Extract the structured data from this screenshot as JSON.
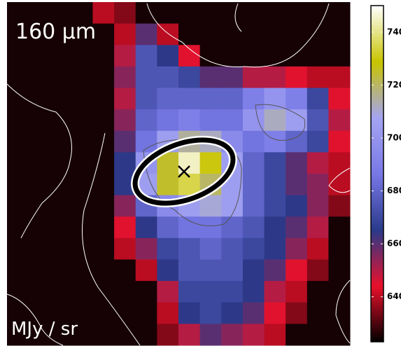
{
  "chart_data": {
    "type": "heatmap",
    "label": "160 μm",
    "unit_label": "MJy / sr",
    "colormap": [
      "#000000",
      "#e8102a",
      "#2a3a8a",
      "#7878e6",
      "#a4a4f2",
      "#c8c400",
      "#ffffff"
    ],
    "clim": [
      623,
      750
    ],
    "cticks": [
      640,
      660,
      680,
      700,
      720,
      740
    ],
    "z": [
      [
        625,
        625,
        625,
        625,
        640,
        635,
        625,
        625,
        625,
        625,
        625,
        625,
        625,
        625,
        625,
        625
      ],
      [
        625,
        625,
        625,
        625,
        625,
        640,
        660,
        640,
        625,
        625,
        625,
        625,
        625,
        625,
        625,
        625
      ],
      [
        625,
        625,
        625,
        625,
        625,
        650,
        675,
        665,
        645,
        625,
        625,
        625,
        625,
        625,
        625,
        625
      ],
      [
        625,
        625,
        625,
        625,
        625,
        655,
        675,
        675,
        670,
        660,
        660,
        650,
        650,
        645,
        640,
        640
      ],
      [
        625,
        625,
        625,
        625,
        625,
        650,
        675,
        680,
        680,
        680,
        680,
        690,
        700,
        690,
        670,
        645
      ],
      [
        625,
        625,
        625,
        625,
        625,
        655,
        680,
        685,
        690,
        685,
        685,
        700,
        712,
        705,
        675,
        650
      ],
      [
        625,
        625,
        625,
        625,
        625,
        660,
        685,
        705,
        715,
        712,
        695,
        685,
        690,
        680,
        670,
        645
      ],
      [
        625,
        625,
        625,
        625,
        625,
        665,
        700,
        725,
        745,
        730,
        705,
        680,
        670,
        660,
        650,
        640
      ],
      [
        625,
        625,
        625,
        625,
        625,
        665,
        705,
        725,
        735,
        720,
        705,
        680,
        670,
        660,
        655,
        640
      ],
      [
        625,
        625,
        625,
        625,
        625,
        655,
        680,
        695,
        705,
        710,
        705,
        680,
        670,
        665,
        655,
        635
      ],
      [
        625,
        625,
        625,
        625,
        625,
        645,
        665,
        680,
        685,
        685,
        680,
        675,
        665,
        660,
        650,
        625
      ],
      [
        625,
        625,
        625,
        625,
        625,
        640,
        655,
        670,
        675,
        680,
        675,
        670,
        665,
        655,
        640,
        625
      ],
      [
        625,
        625,
        625,
        625,
        625,
        625,
        640,
        665,
        675,
        675,
        675,
        665,
        660,
        645,
        635,
        625
      ],
      [
        625,
        625,
        625,
        625,
        625,
        625,
        625,
        650,
        670,
        670,
        670,
        665,
        650,
        640,
        625,
        625
      ],
      [
        625,
        625,
        625,
        625,
        625,
        625,
        625,
        640,
        665,
        670,
        665,
        660,
        645,
        635,
        625,
        625
      ],
      [
        625,
        625,
        625,
        625,
        625,
        625,
        625,
        635,
        650,
        660,
        655,
        650,
        640,
        625,
        625,
        625
      ]
    ]
  }
}
